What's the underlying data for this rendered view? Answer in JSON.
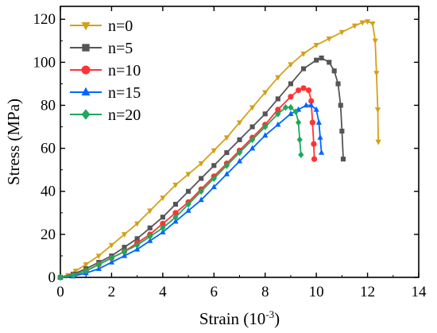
{
  "chart_data": {
    "type": "line",
    "title": "",
    "xlabel": "Strain (10",
    "xlabel_sup": "-3",
    "xlabel_end": ")",
    "ylabel": "Stress (MPa)",
    "xlim": [
      0,
      14
    ],
    "ylim": [
      0,
      126
    ],
    "xticks": [
      0,
      2,
      4,
      6,
      8,
      10,
      12,
      14
    ],
    "yticks": [
      0,
      20,
      40,
      60,
      80,
      100,
      120
    ],
    "grid": false,
    "legend": "top-left",
    "series": [
      {
        "name": "n=0",
        "color": "#D4A017",
        "marker": "triangle-down",
        "points": [
          [
            0,
            0
          ],
          [
            0.3,
            1
          ],
          [
            0.6,
            3
          ],
          [
            1,
            6
          ],
          [
            1.5,
            10
          ],
          [
            2,
            15
          ],
          [
            2.5,
            20
          ],
          [
            3,
            25
          ],
          [
            3.5,
            31
          ],
          [
            4,
            37
          ],
          [
            4.5,
            43
          ],
          [
            5,
            48
          ],
          [
            5.5,
            53
          ],
          [
            6,
            59
          ],
          [
            6.5,
            65
          ],
          [
            7,
            72
          ],
          [
            7.5,
            79
          ],
          [
            8,
            86
          ],
          [
            8.5,
            93
          ],
          [
            9,
            99
          ],
          [
            9.5,
            104
          ],
          [
            10,
            108
          ],
          [
            10.5,
            111
          ],
          [
            11,
            114
          ],
          [
            11.5,
            117
          ],
          [
            11.8,
            118.5
          ],
          [
            12,
            119
          ],
          [
            12.2,
            118
          ],
          [
            12.3,
            110
          ],
          [
            12.35,
            95
          ],
          [
            12.4,
            78
          ],
          [
            12.42,
            63
          ]
        ]
      },
      {
        "name": "n=5",
        "color": "#555555",
        "marker": "square",
        "points": [
          [
            0,
            0
          ],
          [
            0.5,
            1.5
          ],
          [
            1,
            4
          ],
          [
            1.5,
            7
          ],
          [
            2,
            10
          ],
          [
            2.5,
            14
          ],
          [
            3,
            18
          ],
          [
            3.5,
            23
          ],
          [
            4,
            28
          ],
          [
            4.5,
            34
          ],
          [
            5,
            40
          ],
          [
            5.5,
            46
          ],
          [
            6,
            52
          ],
          [
            6.5,
            58
          ],
          [
            7,
            64
          ],
          [
            7.5,
            70
          ],
          [
            8,
            76
          ],
          [
            8.5,
            83
          ],
          [
            9,
            90
          ],
          [
            9.5,
            97
          ],
          [
            10,
            101
          ],
          [
            10.2,
            102
          ],
          [
            10.5,
            100
          ],
          [
            10.7,
            96
          ],
          [
            10.85,
            90
          ],
          [
            10.95,
            80
          ],
          [
            11,
            68
          ],
          [
            11.05,
            55
          ]
        ]
      },
      {
        "name": "n=10",
        "color": "#FF3333",
        "marker": "circle",
        "points": [
          [
            0,
            0
          ],
          [
            0.5,
            1
          ],
          [
            1,
            3
          ],
          [
            1.5,
            6
          ],
          [
            2,
            9
          ],
          [
            2.5,
            12
          ],
          [
            3,
            16
          ],
          [
            3.5,
            20
          ],
          [
            4,
            25
          ],
          [
            4.5,
            30
          ],
          [
            5,
            35
          ],
          [
            5.5,
            41
          ],
          [
            6,
            47
          ],
          [
            6.5,
            53
          ],
          [
            7,
            59
          ],
          [
            7.5,
            65
          ],
          [
            8,
            71
          ],
          [
            8.5,
            78
          ],
          [
            9,
            84
          ],
          [
            9.3,
            87
          ],
          [
            9.5,
            88
          ],
          [
            9.7,
            87
          ],
          [
            9.8,
            82
          ],
          [
            9.85,
            72
          ],
          [
            9.9,
            62
          ],
          [
            9.92,
            55
          ]
        ]
      },
      {
        "name": "n=15",
        "color": "#0066FF",
        "marker": "triangle-up",
        "points": [
          [
            0,
            0
          ],
          [
            0.5,
            0.5
          ],
          [
            1,
            2
          ],
          [
            1.5,
            4
          ],
          [
            2,
            7
          ],
          [
            2.5,
            10
          ],
          [
            3,
            13
          ],
          [
            3.5,
            17
          ],
          [
            4,
            21
          ],
          [
            4.5,
            26
          ],
          [
            5,
            31
          ],
          [
            5.5,
            36
          ],
          [
            6,
            42
          ],
          [
            6.5,
            48
          ],
          [
            7,
            54
          ],
          [
            7.5,
            60
          ],
          [
            8,
            66
          ],
          [
            8.5,
            71
          ],
          [
            9,
            76
          ],
          [
            9.3,
            78
          ],
          [
            9.6,
            80
          ],
          [
            9.8,
            80
          ],
          [
            10,
            78
          ],
          [
            10.1,
            72
          ],
          [
            10.15,
            65
          ],
          [
            10.2,
            58
          ]
        ]
      },
      {
        "name": "n=20",
        "color": "#1DA85B",
        "marker": "diamond",
        "points": [
          [
            0,
            0
          ],
          [
            0.5,
            1
          ],
          [
            1,
            3
          ],
          [
            1.5,
            6
          ],
          [
            2,
            9
          ],
          [
            2.5,
            12
          ],
          [
            3,
            15
          ],
          [
            3.5,
            19
          ],
          [
            4,
            23
          ],
          [
            4.5,
            28
          ],
          [
            5,
            34
          ],
          [
            5.5,
            40
          ],
          [
            6,
            46
          ],
          [
            6.5,
            52
          ],
          [
            7,
            58
          ],
          [
            7.5,
            64
          ],
          [
            8,
            70
          ],
          [
            8.5,
            76
          ],
          [
            8.8,
            79
          ],
          [
            9,
            79
          ],
          [
            9.2,
            77
          ],
          [
            9.3,
            72
          ],
          [
            9.35,
            64
          ],
          [
            9.4,
            57
          ]
        ]
      }
    ]
  }
}
